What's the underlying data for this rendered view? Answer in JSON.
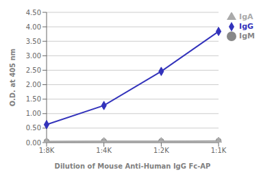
{
  "chart_data": {
    "type": "line",
    "xlabel": "Dilution of Mouse Anti-Human IgG Fc-AP",
    "ylabel": "O.D. at 405 nm",
    "categories": [
      "1:8K",
      "1:4K",
      "1:2K",
      "1:1K"
    ],
    "series": [
      {
        "name": "IgG",
        "color": "#3333bb",
        "marker": "diamond",
        "values": [
          0.62,
          1.28,
          2.46,
          3.84
        ]
      },
      {
        "name": "IgM",
        "color": "#888888",
        "marker": "circle",
        "values": [
          0.04,
          0.05,
          0.05,
          0.06
        ]
      },
      {
        "name": "IgA",
        "color": "#aaaaaa",
        "marker": "triangle",
        "values": [
          0.03,
          0.04,
          0.04,
          0.05
        ]
      }
    ],
    "ylim": [
      0,
      4.5
    ],
    "yticks": [
      {
        "value": 0,
        "label": "0.00"
      },
      {
        "value": 0.5,
        "label": "0.50"
      },
      {
        "value": 1,
        "label": "1.00"
      },
      {
        "value": 1.5,
        "label": "1.50"
      },
      {
        "value": 2,
        "label": "2.00"
      },
      {
        "value": 2.5,
        "label": "2.50"
      },
      {
        "value": 3,
        "label": "3.00"
      },
      {
        "value": 3.5,
        "label": "3.50"
      },
      {
        "value": 4,
        "label": "4.00"
      },
      {
        "value": 4.5,
        "label": "4.50"
      }
    ],
    "grid": true,
    "legend": "right"
  }
}
